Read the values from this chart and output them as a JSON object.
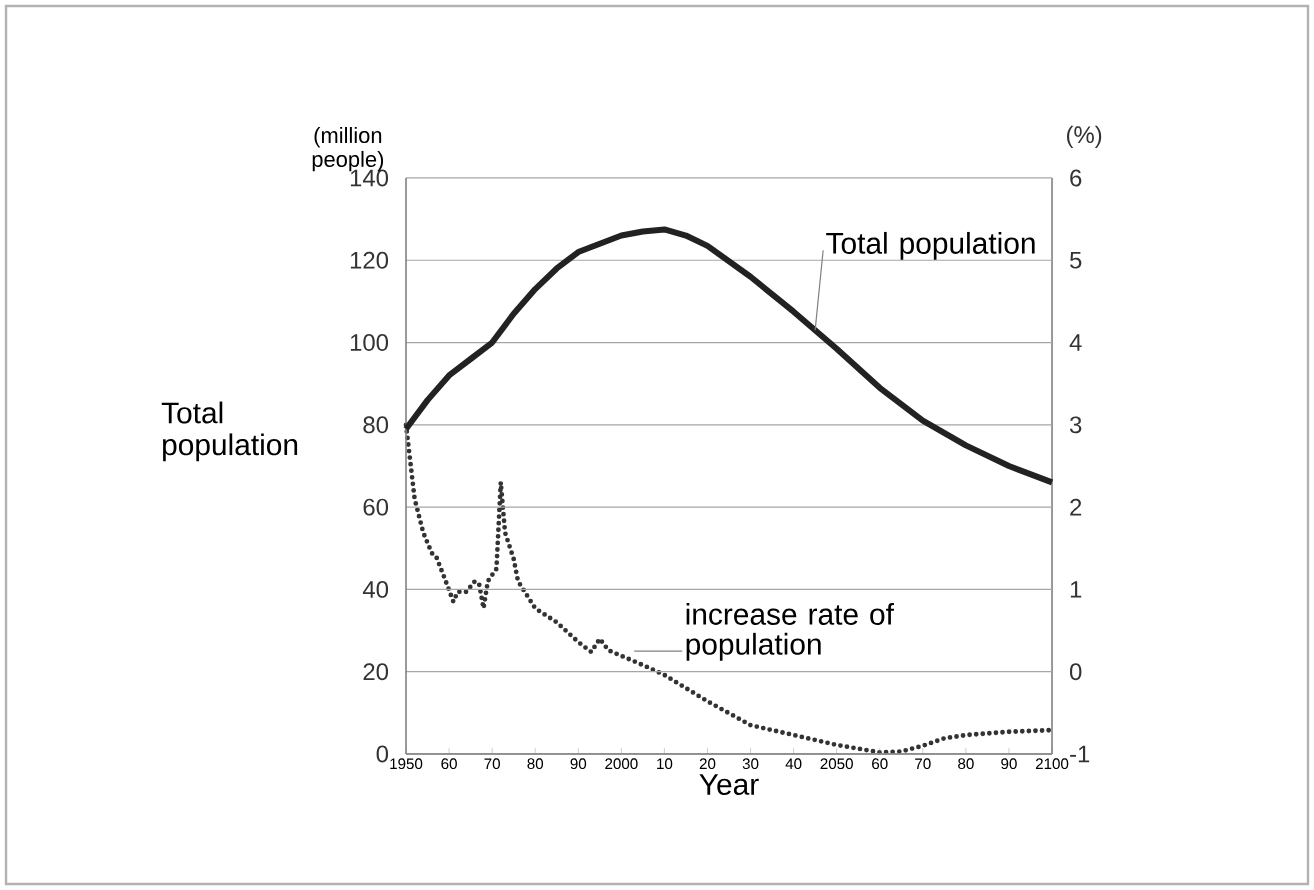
{
  "chart_data": {
    "type": "line",
    "xlabel": "Year",
    "ylabel": "Total population",
    "y2label": "(%)",
    "xlim": [
      1950,
      2100
    ],
    "xticks": [
      {
        "value": 1950,
        "label": "1950"
      },
      {
        "value": 1960,
        "label": "60"
      },
      {
        "value": 1970,
        "label": "70"
      },
      {
        "value": 1980,
        "label": "80"
      },
      {
        "value": 1990,
        "label": "90"
      },
      {
        "value": 2000,
        "label": "2000"
      },
      {
        "value": 2010,
        "label": "10"
      },
      {
        "value": 2020,
        "label": "20"
      },
      {
        "value": 2030,
        "label": "30"
      },
      {
        "value": 2040,
        "label": "40"
      },
      {
        "value": 2050,
        "label": "2050"
      },
      {
        "value": 2060,
        "label": "60"
      },
      {
        "value": 2070,
        "label": "70"
      },
      {
        "value": 2080,
        "label": "80"
      },
      {
        "value": 2090,
        "label": "90"
      },
      {
        "value": 2100,
        "label": "2100"
      }
    ],
    "ylim": [
      0,
      140
    ],
    "yticks": [
      0,
      20,
      40,
      60,
      80,
      100,
      120,
      140
    ],
    "y2lim": [
      -1,
      6
    ],
    "y2ticks": [
      -1,
      0,
      1,
      2,
      3,
      4,
      5,
      6
    ],
    "grid": "y",
    "series": [
      {
        "color": "#222222",
        "line_style": "solid",
        "x": [
          1950,
          1955,
          1960,
          1965,
          1970,
          1975,
          1980,
          1985,
          1990,
          1995,
          2000,
          2005,
          2010,
          2015,
          2020,
          2030,
          2040,
          2050,
          2060,
          2070,
          2080,
          2090,
          2100
        ],
        "values": [
          79,
          86,
          92,
          96,
          100,
          107,
          113,
          118,
          122,
          124,
          126,
          127,
          127.5,
          126,
          123.5,
          116,
          107.5,
          98.5,
          89,
          81,
          75,
          70,
          66
        ]
      },
      {
        "color": "#333333",
        "line_style": "dotted",
        "axis": "y2",
        "x": [
          1950,
          1952,
          1954,
          1956,
          1957,
          1959,
          1961,
          1962,
          1964,
          1966,
          1967,
          1968,
          1969,
          1971,
          1972,
          1973,
          1975,
          1976,
          1980,
          1985,
          1990,
          1993,
          1995,
          1997,
          2005,
          2010,
          2020,
          2030,
          2040,
          2050,
          2060,
          2065,
          2070,
          2075,
          2080,
          2090,
          2100
        ],
        "values": [
          3.0,
          2.1,
          1.69,
          1.44,
          1.4,
          1.13,
          0.85,
          0.97,
          0.97,
          1.1,
          1.06,
          0.77,
          1.1,
          1.25,
          2.3,
          1.69,
          1.37,
          1.1,
          0.77,
          0.6,
          0.36,
          0.24,
          0.4,
          0.26,
          0.08,
          -0.04,
          -0.36,
          -0.65,
          -0.77,
          -0.89,
          -0.98,
          -0.97,
          -0.9,
          -0.81,
          -0.77,
          -0.73,
          -0.71
        ]
      }
    ],
    "annotations": [
      "(million people)",
      {
        "text": "Total population",
        "x": 2045,
        "y": 103
      },
      {
        "text": "increase rate of population",
        "x": 2003,
        "y": 25
      }
    ]
  }
}
